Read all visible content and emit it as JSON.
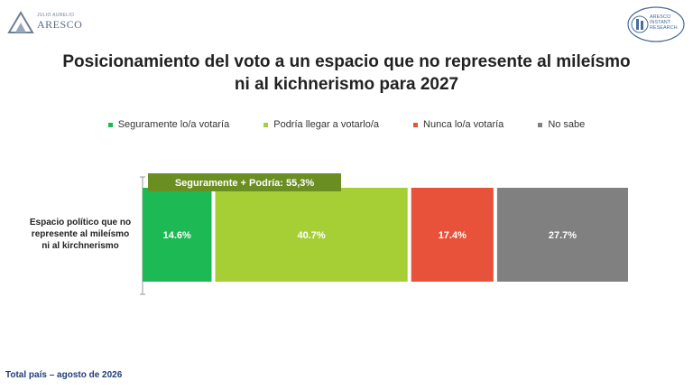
{
  "branding": {
    "left_logo_small": "JULIO AURELIO",
    "left_logo_big": "ARESCO",
    "right_logo_text": "ARESCO\nINSTANT\nRESEARCH"
  },
  "title_line1": "Posicionamiento del voto a un espacio que no represente al mileísmo",
  "title_line2": "ni al kichnerismo para 2027",
  "footer": "Total país – agosto de 2026",
  "chart_data": {
    "type": "bar",
    "orientation": "horizontal-stacked",
    "categories": [
      "Espacio político que no represente al mileísmo ni al kirchnerismo"
    ],
    "series": [
      {
        "name": "Seguramente lo/a votaría",
        "values": [
          14.6
        ],
        "label": "14.6%",
        "color": "#1db954"
      },
      {
        "name": "Podría llegar a votarlo/a",
        "values": [
          40.7
        ],
        "label": "40.7%",
        "color": "#a6cf35"
      },
      {
        "name": "Nunca lo/a votaría",
        "values": [
          17.4
        ],
        "label": "17.4%",
        "color": "#e8523a"
      },
      {
        "name": "No sabe",
        "values": [
          27.7
        ],
        "label": "27.7%",
        "color": "#808080"
      }
    ],
    "annotation": {
      "text": "Seguramente + Podría: 55,3%",
      "color": "#6b8e23"
    },
    "legend_position": "top",
    "grid": false
  }
}
